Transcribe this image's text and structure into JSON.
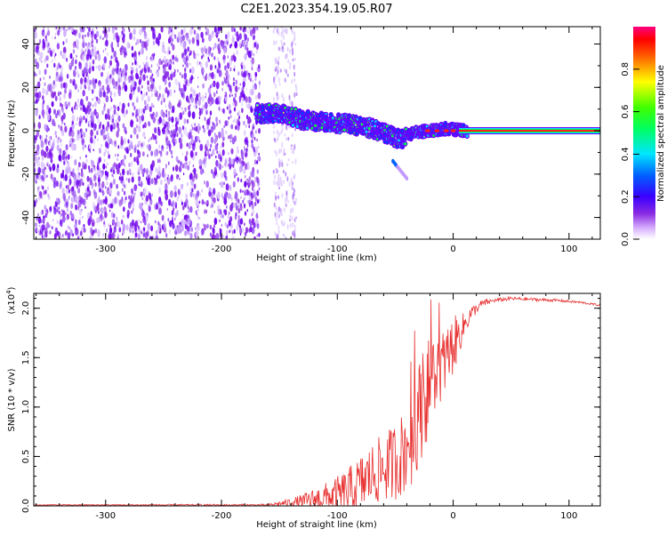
{
  "title": "C2E1.2023.354.19.05.R07",
  "colors": {
    "spectrogram_cmap": [
      "#ffffff",
      "#d9b3ff",
      "#8a2be2",
      "#5a00f0",
      "#0000ff",
      "#00d5ff",
      "#00ff00",
      "#ffff00",
      "#ff0000",
      "#ff0080"
    ],
    "snr_line": "#e83030"
  },
  "chart_data": [
    {
      "type": "heatmap",
      "xlabel": "Height of straight line (km)",
      "ylabel": "Frequency (Hz)",
      "xlim": [
        -362,
        127
      ],
      "ylim": [
        -50,
        48
      ],
      "xticks": [
        -300,
        -200,
        -100,
        0,
        100
      ],
      "xtick_labels": [
        "-300",
        "-200",
        "-100",
        "0",
        "100"
      ],
      "yticks": [
        -40,
        -20,
        0,
        20,
        40
      ],
      "ytick_labels": [
        "-40",
        "-20",
        "0",
        "20",
        "40"
      ],
      "features": {
        "noise_region_km": [
          -362,
          -167
        ],
        "sparse_noise_band_km": [
          -155,
          -135
        ],
        "signal_track": {
          "x": [
            -170,
            -150,
            -130,
            -110,
            -90,
            -70,
            -55,
            -45,
            -35,
            -20,
            -5,
            10,
            127
          ],
          "y": [
            8,
            8,
            5,
            4,
            3,
            1,
            -2,
            -4,
            -1,
            0,
            1,
            0,
            0
          ]
        },
        "side_branch": {
          "x": [
            -52,
            -40
          ],
          "y": [
            -14,
            -22
          ]
        }
      },
      "colorbar": {
        "label": "Normalized spectral amplitude",
        "range": [
          0,
          1
        ],
        "ticks": [
          0.0,
          0.2,
          0.4,
          0.6,
          0.8
        ],
        "tick_labels": [
          "0.0",
          "0.2",
          "0.4",
          "0.6",
          "0.8"
        ]
      }
    },
    {
      "type": "line",
      "xlabel": "Height of straight line (km)",
      "ylabel": "SNR (10 * v/v)",
      "multiplier_label": "(x10",
      "multiplier_exponent": "4",
      "multiplier_close": ")",
      "xlim": [
        -362,
        127
      ],
      "ylim": [
        0,
        2.15
      ],
      "xticks": [
        -300,
        -200,
        -100,
        0,
        100
      ],
      "xtick_labels": [
        "-300",
        "-200",
        "-100",
        "0",
        "100"
      ],
      "yticks": [
        0.0,
        0.5,
        1.0,
        1.5,
        2.0
      ],
      "ytick_labels": [
        "0.0",
        "0.5",
        "1.0",
        "1.5",
        "2.0"
      ],
      "series": [
        {
          "envelope": {
            "x": [
              -362,
              -160,
              -140,
              -130,
              -115,
              -100,
              -85,
              -70,
              -55,
              -45,
              -35,
              -28,
              -20,
              -12,
              -5,
              5,
              15,
              25,
              35,
              50,
              70,
              90,
              110,
              127
            ],
            "y": [
              0.01,
              0.01,
              0.04,
              0.05,
              0.09,
              0.12,
              0.2,
              0.35,
              0.45,
              0.55,
              0.75,
              1.05,
              1.3,
              1.4,
              1.55,
              1.75,
              1.95,
              2.05,
              2.08,
              2.1,
              2.09,
              2.08,
              2.06,
              2.03
            ]
          },
          "noise_amplitude": {
            "x": [
              -362,
              -160,
              -140,
              -110,
              -80,
              -60,
              -40,
              -25,
              -15,
              0,
              10,
              20,
              35,
              127
            ],
            "y": [
              0.005,
              0.01,
              0.04,
              0.15,
              0.3,
              0.35,
              0.45,
              0.55,
              0.4,
              0.3,
              0.12,
              0.05,
              0.02,
              0.01
            ]
          }
        }
      ]
    }
  ]
}
